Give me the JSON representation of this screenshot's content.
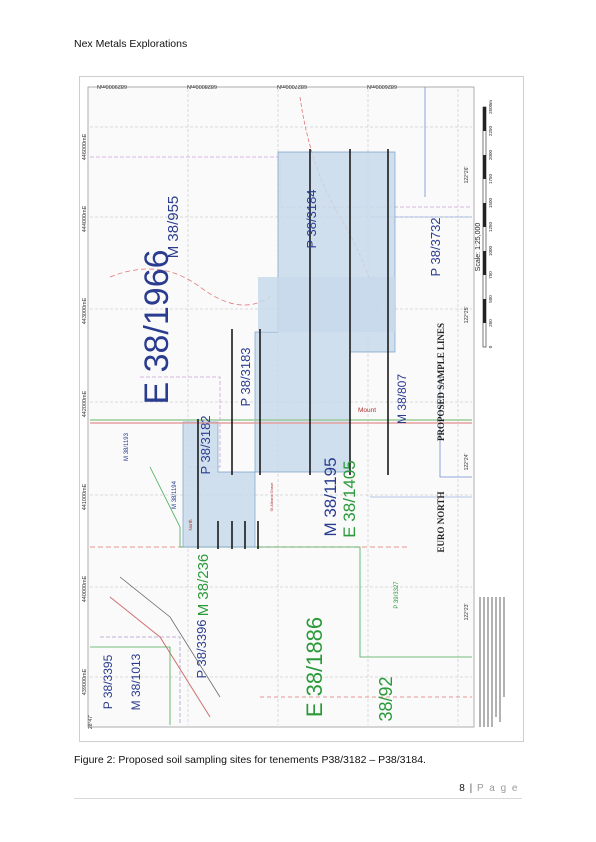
{
  "header": {
    "title": "Nex Metals Explorations"
  },
  "figure": {
    "caption": "Figure 2: Proposed soil sampling sites for tenements P38/3182 – P38/3184.",
    "map": {
      "northings": [
        "6829000mN",
        "6828000mN",
        "6827000mN",
        "6826000mN"
      ],
      "eastings": [
        "446000mE",
        "444000mE",
        "443000mE",
        "442000mE",
        "441000mE",
        "440000mE",
        "439000mE"
      ],
      "tenements": {
        "e1966": "E 38/1966",
        "m955": "M 38/955",
        "p3184": "P 38/3184",
        "p3183": "P 38/3183",
        "p3182": "P 38/3182",
        "p3732": "P 38/3732",
        "m807": "M 38/807",
        "m1195": "M 38/1195",
        "e1405": "E 38/1405",
        "m236": "M 38/236",
        "p3396": "P 38/3396",
        "m1013": "M 38/1013",
        "p3395": "P 38/3395",
        "e1886": "E 38/1886",
        "m92": "38/92",
        "m1193": "M 38/1193",
        "m1194": "M 38/1194",
        "p3327": "P 39/3327"
      },
      "places": {
        "mount": "Mount",
        "north": "North",
        "st_albans": "St Albans Grave"
      },
      "coords": {
        "c1": "122°26'",
        "c2": "122°25'",
        "c3": "122°24'",
        "c4": "122°23'",
        "c5": "28°47'"
      },
      "scale_label": "Scale: 1:25,000",
      "scale_ticks": [
        "0",
        "250",
        "500",
        "750",
        "1000",
        "1250",
        "1500",
        "1750",
        "2000",
        "2250",
        "2500m"
      ],
      "legend": {
        "proposed": "PROPOSED SAMPLE LINES",
        "region": "EURO NORTH"
      }
    }
  },
  "footer": {
    "page_number": "8",
    "separator": "|",
    "page_word": "P a g e"
  }
}
